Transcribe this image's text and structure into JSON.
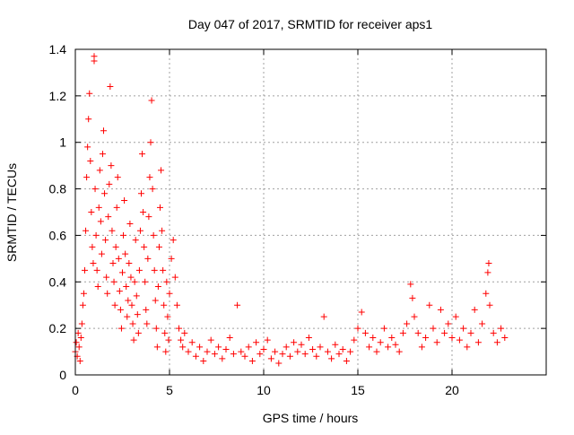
{
  "chart_data": {
    "type": "scatter",
    "title": "Day 047 of 2017, SRMTID for receiver aps1",
    "xlabel": "GPS time / hours",
    "ylabel": "SRMTID / TECUs",
    "xlim": [
      0,
      25
    ],
    "ylim": [
      0,
      1.4
    ],
    "x_ticks": [
      0,
      5,
      10,
      15,
      20
    ],
    "x_tick_labels": [
      "0",
      "5",
      "10",
      "15",
      "20"
    ],
    "y_ticks": [
      0,
      0.2,
      0.4,
      0.6,
      0.8,
      1,
      1.2,
      1.4
    ],
    "y_tick_labels": [
      "0",
      "0.2",
      "0.4",
      "0.6",
      "0.8",
      "1",
      "1.2",
      "1.4"
    ],
    "grid": true,
    "marker": "plus",
    "color": "#ff0000",
    "series": [
      {
        "name": "SRMTID",
        "points": [
          [
            0.0,
            0.1
          ],
          [
            0.05,
            0.14
          ],
          [
            0.1,
            0.08
          ],
          [
            0.15,
            0.18
          ],
          [
            0.2,
            0.12
          ],
          [
            0.25,
            0.06
          ],
          [
            0.3,
            0.16
          ],
          [
            0.35,
            0.22
          ],
          [
            0.4,
            0.3
          ],
          [
            0.45,
            0.35
          ],
          [
            0.5,
            0.45
          ],
          [
            0.55,
            0.62
          ],
          [
            0.6,
            0.85
          ],
          [
            0.65,
            0.98
          ],
          [
            0.7,
            1.1
          ],
          [
            0.75,
            1.21
          ],
          [
            0.8,
            0.92
          ],
          [
            0.85,
            0.7
          ],
          [
            0.9,
            0.55
          ],
          [
            0.95,
            0.48
          ],
          [
            1.0,
            1.37
          ],
          [
            1.0,
            1.35
          ],
          [
            1.05,
            0.8
          ],
          [
            1.1,
            0.6
          ],
          [
            1.15,
            0.45
          ],
          [
            1.2,
            0.38
          ],
          [
            1.25,
            0.72
          ],
          [
            1.3,
            0.88
          ],
          [
            1.35,
            0.66
          ],
          [
            1.4,
            0.52
          ],
          [
            1.45,
            0.95
          ],
          [
            1.5,
            1.05
          ],
          [
            1.55,
            0.78
          ],
          [
            1.6,
            0.58
          ],
          [
            1.65,
            0.42
          ],
          [
            1.7,
            0.35
          ],
          [
            1.75,
            0.68
          ],
          [
            1.8,
            0.82
          ],
          [
            1.85,
            1.24
          ],
          [
            1.9,
            0.9
          ],
          [
            1.95,
            0.62
          ],
          [
            2.0,
            0.48
          ],
          [
            2.05,
            0.4
          ],
          [
            2.1,
            0.3
          ],
          [
            2.15,
            0.55
          ],
          [
            2.2,
            0.72
          ],
          [
            2.25,
            0.85
          ],
          [
            2.3,
            0.5
          ],
          [
            2.35,
            0.36
          ],
          [
            2.4,
            0.28
          ],
          [
            2.45,
            0.2
          ],
          [
            2.5,
            0.44
          ],
          [
            2.55,
            0.6
          ],
          [
            2.6,
            0.75
          ],
          [
            2.65,
            0.52
          ],
          [
            2.7,
            0.38
          ],
          [
            2.75,
            0.25
          ],
          [
            2.8,
            0.32
          ],
          [
            2.85,
            0.48
          ],
          [
            2.9,
            0.65
          ],
          [
            2.95,
            0.42
          ],
          [
            3.0,
            0.3
          ],
          [
            3.05,
            0.22
          ],
          [
            3.1,
            0.15
          ],
          [
            3.15,
            0.4
          ],
          [
            3.2,
            0.58
          ],
          [
            3.25,
            0.34
          ],
          [
            3.3,
            0.26
          ],
          [
            3.35,
            0.18
          ],
          [
            3.4,
            0.45
          ],
          [
            3.45,
            0.62
          ],
          [
            3.5,
            0.78
          ],
          [
            3.55,
            0.95
          ],
          [
            3.6,
            0.7
          ],
          [
            3.65,
            0.55
          ],
          [
            3.7,
            0.4
          ],
          [
            3.75,
            0.28
          ],
          [
            3.8,
            0.22
          ],
          [
            3.85,
            0.5
          ],
          [
            3.9,
            0.68
          ],
          [
            3.95,
            0.85
          ],
          [
            4.0,
            1.0
          ],
          [
            4.05,
            1.18
          ],
          [
            4.1,
            0.8
          ],
          [
            4.15,
            0.6
          ],
          [
            4.2,
            0.45
          ],
          [
            4.25,
            0.32
          ],
          [
            4.3,
            0.2
          ],
          [
            4.35,
            0.12
          ],
          [
            4.4,
            0.38
          ],
          [
            4.45,
            0.55
          ],
          [
            4.5,
            0.72
          ],
          [
            4.55,
            0.88
          ],
          [
            4.6,
            0.62
          ],
          [
            4.65,
            0.45
          ],
          [
            4.7,
            0.3
          ],
          [
            4.75,
            0.18
          ],
          [
            4.8,
            0.1
          ],
          [
            4.85,
            0.4
          ],
          [
            4.9,
            0.25
          ],
          [
            4.95,
            0.15
          ],
          [
            5.0,
            0.35
          ],
          [
            5.1,
            0.5
          ],
          [
            5.2,
            0.58
          ],
          [
            5.3,
            0.42
          ],
          [
            5.4,
            0.3
          ],
          [
            5.5,
            0.2
          ],
          [
            5.6,
            0.15
          ],
          [
            5.7,
            0.12
          ],
          [
            5.8,
            0.18
          ],
          [
            6.0,
            0.1
          ],
          [
            6.2,
            0.14
          ],
          [
            6.4,
            0.08
          ],
          [
            6.6,
            0.12
          ],
          [
            6.8,
            0.06
          ],
          [
            7.0,
            0.1
          ],
          [
            7.2,
            0.15
          ],
          [
            7.4,
            0.09
          ],
          [
            7.6,
            0.12
          ],
          [
            7.8,
            0.07
          ],
          [
            8.0,
            0.11
          ],
          [
            8.2,
            0.16
          ],
          [
            8.4,
            0.09
          ],
          [
            8.6,
            0.3
          ],
          [
            8.8,
            0.1
          ],
          [
            9.0,
            0.08
          ],
          [
            9.2,
            0.12
          ],
          [
            9.4,
            0.06
          ],
          [
            9.6,
            0.14
          ],
          [
            9.8,
            0.09
          ],
          [
            10.0,
            0.11
          ],
          [
            10.2,
            0.15
          ],
          [
            10.4,
            0.07
          ],
          [
            10.6,
            0.1
          ],
          [
            10.8,
            0.05
          ],
          [
            11.0,
            0.09
          ],
          [
            11.2,
            0.12
          ],
          [
            11.4,
            0.08
          ],
          [
            11.6,
            0.14
          ],
          [
            11.8,
            0.1
          ],
          [
            12.0,
            0.13
          ],
          [
            12.2,
            0.09
          ],
          [
            12.4,
            0.16
          ],
          [
            12.6,
            0.11
          ],
          [
            12.8,
            0.08
          ],
          [
            13.0,
            0.12
          ],
          [
            13.2,
            0.25
          ],
          [
            13.4,
            0.1
          ],
          [
            13.6,
            0.07
          ],
          [
            13.8,
            0.13
          ],
          [
            14.0,
            0.09
          ],
          [
            14.2,
            0.11
          ],
          [
            14.4,
            0.06
          ],
          [
            14.6,
            0.1
          ],
          [
            14.8,
            0.15
          ],
          [
            15.0,
            0.2
          ],
          [
            15.2,
            0.27
          ],
          [
            15.4,
            0.18
          ],
          [
            15.6,
            0.12
          ],
          [
            15.8,
            0.16
          ],
          [
            16.0,
            0.1
          ],
          [
            16.2,
            0.14
          ],
          [
            16.4,
            0.2
          ],
          [
            16.6,
            0.12
          ],
          [
            16.8,
            0.16
          ],
          [
            17.0,
            0.13
          ],
          [
            17.2,
            0.1
          ],
          [
            17.4,
            0.18
          ],
          [
            17.6,
            0.22
          ],
          [
            17.8,
            0.39
          ],
          [
            17.9,
            0.33
          ],
          [
            18.0,
            0.25
          ],
          [
            18.2,
            0.18
          ],
          [
            18.4,
            0.12
          ],
          [
            18.6,
            0.16
          ],
          [
            18.8,
            0.3
          ],
          [
            19.0,
            0.2
          ],
          [
            19.2,
            0.14
          ],
          [
            19.4,
            0.28
          ],
          [
            19.6,
            0.18
          ],
          [
            19.8,
            0.22
          ],
          [
            20.0,
            0.16
          ],
          [
            20.2,
            0.25
          ],
          [
            20.4,
            0.15
          ],
          [
            20.6,
            0.2
          ],
          [
            20.8,
            0.12
          ],
          [
            21.0,
            0.18
          ],
          [
            21.2,
            0.28
          ],
          [
            21.4,
            0.14
          ],
          [
            21.6,
            0.22
          ],
          [
            21.8,
            0.35
          ],
          [
            21.9,
            0.44
          ],
          [
            21.95,
            0.48
          ],
          [
            22.0,
            0.3
          ],
          [
            22.2,
            0.18
          ],
          [
            22.4,
            0.14
          ],
          [
            22.6,
            0.2
          ],
          [
            22.8,
            0.16
          ]
        ]
      }
    ]
  }
}
